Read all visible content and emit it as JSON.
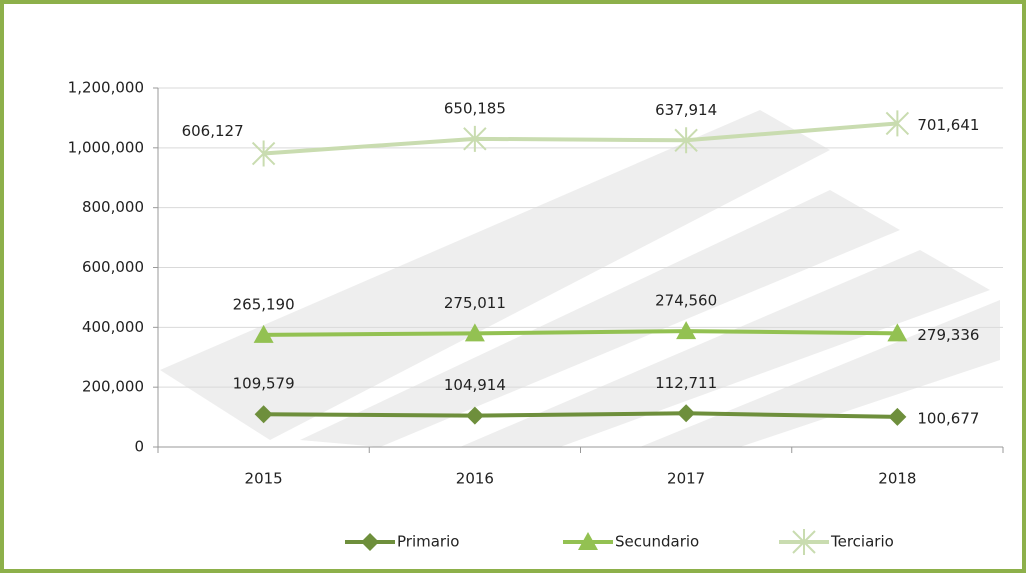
{
  "chart_data": {
    "type": "stacked-line",
    "categories": [
      "2015",
      "2016",
      "2017",
      "2018"
    ],
    "series": [
      {
        "name": "Primario",
        "color": "#6e8f3c",
        "marker": "diamond",
        "values": [
          109579,
          104914,
          112711,
          100677
        ],
        "value_labels": [
          "109,579",
          "104,914",
          "112,711",
          "100,677"
        ]
      },
      {
        "name": "Secundario",
        "color": "#93c152",
        "marker": "triangle",
        "values": [
          265190,
          275011,
          274560,
          279336
        ],
        "value_labels": [
          "265,190",
          "275,011",
          "274,560",
          "279,336"
        ]
      },
      {
        "name": "Terciario",
        "color": "#c9dcb0",
        "marker": "star",
        "values": [
          606127,
          650185,
          637914,
          701641
        ],
        "value_labels": [
          "606,127",
          "650,185",
          "637,914",
          "701,641"
        ]
      }
    ],
    "ylim": [
      0,
      1200000
    ],
    "yticks": [
      0,
      {
        "value": 200000,
        "label": "200,000"
      },
      {
        "value": 400000,
        "label": "400,000"
      },
      {
        "value": 600000,
        "label": "600,000"
      },
      {
        "value": 800000,
        "label": "800,000"
      },
      {
        "value": 1000000,
        "label": "1,000,000"
      },
      {
        "value": 1200000,
        "label": "1,200,000"
      }
    ],
    "grid": true,
    "legend": "bottom"
  }
}
